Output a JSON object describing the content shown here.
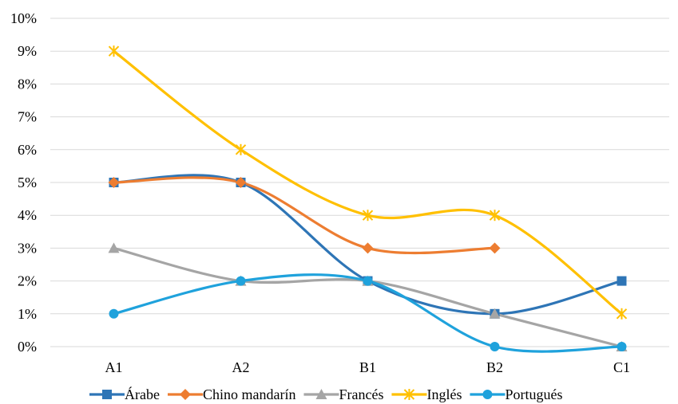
{
  "chart_data": {
    "type": "line",
    "smooth": true,
    "categories": [
      "A1",
      "A2",
      "B1",
      "B2",
      "C1"
    ],
    "ylim": [
      0,
      10
    ],
    "y_ticks": [
      "0%",
      "1%",
      "2%",
      "3%",
      "4%",
      "5%",
      "6%",
      "7%",
      "8%",
      "9%",
      "10%"
    ],
    "grid": "horizontal",
    "legend_position": "bottom",
    "series": [
      {
        "name": "Árabe",
        "values": [
          5,
          5,
          2,
          1,
          2
        ],
        "color": "#2E75B6",
        "marker": "square"
      },
      {
        "name": "Chino mandarín",
        "values": [
          5,
          5,
          3,
          3,
          null
        ],
        "color": "#ED7D31",
        "marker": "diamond"
      },
      {
        "name": "Francés",
        "values": [
          3,
          2,
          2,
          1,
          0
        ],
        "color": "#A5A5A5",
        "marker": "triangle"
      },
      {
        "name": "Inglés",
        "values": [
          9,
          6,
          4,
          4,
          1
        ],
        "color": "#FFC000",
        "marker": "star"
      },
      {
        "name": "Portugués",
        "values": [
          1,
          2,
          2,
          0,
          0
        ],
        "color": "#1FA2DC",
        "marker": "circle"
      }
    ]
  }
}
